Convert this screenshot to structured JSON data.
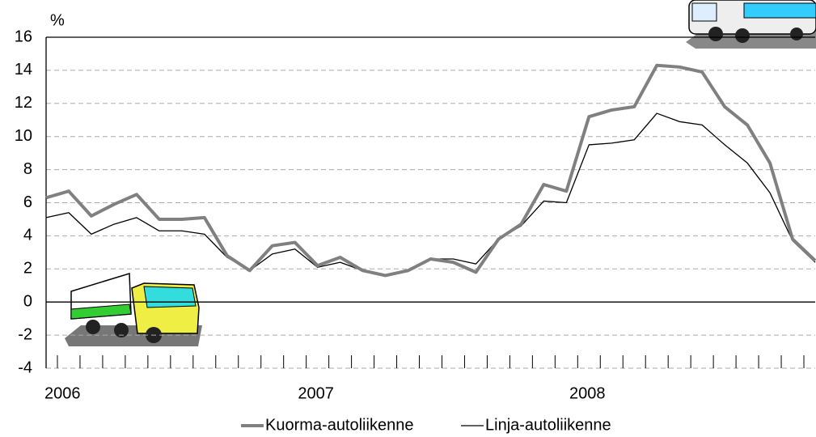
{
  "chart_data": {
    "type": "line",
    "y_label": "%",
    "categories": [
      "2006",
      null,
      null,
      null,
      null,
      null,
      null,
      null,
      null,
      null,
      null,
      null,
      "2007",
      null,
      null,
      null,
      null,
      null,
      null,
      null,
      null,
      null,
      null,
      null,
      "2008",
      null,
      null,
      null,
      null,
      null,
      null,
      null,
      null,
      null,
      null
    ],
    "series": [
      {
        "name": "Kuorma-autoliikenne",
        "color": "#808080",
        "width": 4,
        "values": [
          6.3,
          6.7,
          5.2,
          5.9,
          6.5,
          5.0,
          5.0,
          5.1,
          2.8,
          1.9,
          3.4,
          3.6,
          2.2,
          2.7,
          1.9,
          1.6,
          1.9,
          2.6,
          2.4,
          1.8,
          3.8,
          4.7,
          7.1,
          6.7,
          11.2,
          11.6,
          11.8,
          14.3,
          14.2,
          13.9,
          11.8,
          10.7,
          8.4,
          3.8,
          2.5
        ]
      },
      {
        "name": "Linja-autoliikenne",
        "color": "#000000",
        "width": 1.3,
        "values": [
          5.1,
          5.4,
          4.1,
          4.7,
          5.1,
          4.3,
          4.3,
          4.1,
          2.7,
          1.9,
          2.9,
          3.2,
          2.1,
          2.4,
          1.9,
          1.6,
          1.9,
          2.6,
          2.6,
          2.3,
          3.8,
          4.6,
          6.1,
          6.0,
          9.5,
          9.6,
          9.8,
          11.4,
          10.9,
          10.7,
          9.5,
          8.4,
          6.6,
          3.7,
          2.4
        ]
      }
    ],
    "ylim": [
      -4,
      16
    ],
    "yticks": [
      -4,
      -2,
      0,
      2,
      4,
      6,
      8,
      10,
      12,
      14,
      16
    ],
    "grid": true
  }
}
